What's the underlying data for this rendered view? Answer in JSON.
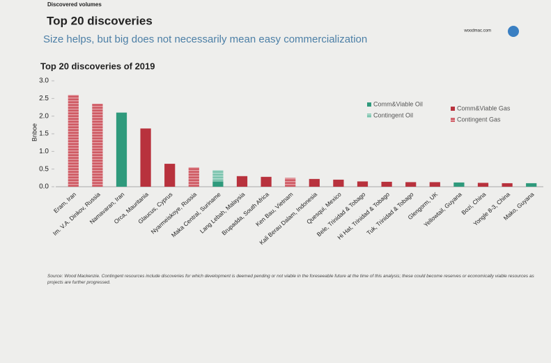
{
  "header": {
    "section": "Discovered volumes",
    "title": "Top 20 discoveries",
    "site": "woodmac.com",
    "subtitle": "Size helps, but big does not necessarily mean easy commercialization"
  },
  "chart_data": {
    "type": "stacked-bar",
    "title": "Top 20 discoveries of 2019",
    "y_label": "Bnboe",
    "categories": [
      "Eram, Iran",
      "Im. V.A. Dinkov, Russia",
      "Namavaran, Iran",
      "Orca, Mauritania",
      "Glaucus, Cyprus",
      "Nyarmeiskoye, Russia",
      "Maka Central, Suriname",
      "Lang Lebah, Malaysia",
      "Brupadda, South Africa",
      "Ken Bau, Vietnam",
      "Kali Berau Dalam, Indonesia",
      "Quesqui, Mexico",
      "Bele, Trinidad & Tobago",
      "Hi Hat, Trinidad & Tobago",
      "Tuk, Trinidad & Tobago",
      "Glengorm, UK",
      "Yellowtail, Guyana",
      "Bozi, China",
      "Yongle 8-3, China",
      "Mako, Guyana"
    ],
    "series": [
      {
        "name": "Comm&Viable Oil",
        "color": "#2f9a7c",
        "hatched": false,
        "values": [
          null,
          null,
          2.1,
          null,
          null,
          null,
          0.15,
          null,
          null,
          null,
          null,
          null,
          null,
          null,
          null,
          null,
          0.12,
          null,
          null,
          0.1
        ]
      },
      {
        "name": "Contingent Oil",
        "color": "#7cc4ae",
        "hatched": true,
        "values": [
          null,
          null,
          null,
          null,
          null,
          null,
          0.32,
          null,
          null,
          null,
          null,
          null,
          null,
          null,
          null,
          null,
          null,
          null,
          null,
          null
        ]
      },
      {
        "name": "Comm&Viable Gas",
        "color": "#b8323d",
        "hatched": false,
        "values": [
          null,
          null,
          null,
          1.65,
          0.65,
          null,
          null,
          0.3,
          0.28,
          null,
          0.22,
          0.2,
          0.15,
          0.14,
          0.13,
          0.13,
          null,
          0.11,
          0.1,
          null
        ]
      },
      {
        "name": "Contingent Gas",
        "color": "#cf5b64",
        "hatched": true,
        "values": [
          2.6,
          2.35,
          null,
          null,
          null,
          0.55,
          null,
          null,
          null,
          0.25,
          null,
          null,
          null,
          null,
          null,
          null,
          null,
          null,
          null,
          null
        ]
      }
    ],
    "ylim": [
      0,
      3
    ],
    "yticks": [
      {
        "value": 0,
        "label": "0.0"
      },
      0.5,
      {
        "value": 1,
        "label": "1.0"
      },
      1.5,
      {
        "value": 2,
        "label": "2.0"
      },
      2.5,
      {
        "value": 3,
        "label": "3.0"
      }
    ],
    "grid": false,
    "legend": "top-right"
  },
  "source": "Source: Wood Mackenzie. Contingent resources include discoveries for which development is deemed pending or not viable in the foreseeable future at the time of this analysis; these could become reserves or economically viable resources as projects are further progressed."
}
